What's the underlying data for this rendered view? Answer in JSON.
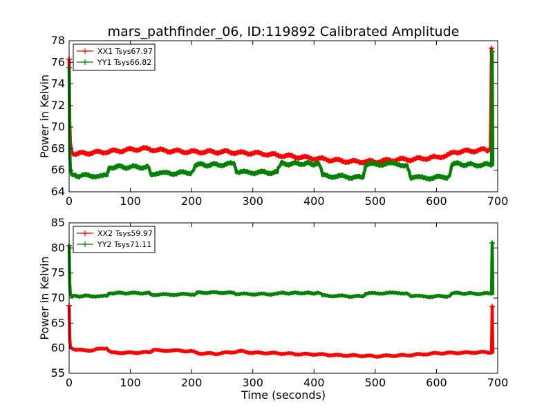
{
  "figure": {
    "title": "mars_pathfinder_06, ID:119892 Calibrated Amplitude",
    "xlabel": "Time (seconds)"
  },
  "colors": {
    "red": "#ff0000",
    "green": "#008000"
  },
  "chart_data": [
    {
      "type": "line",
      "title": "mars_pathfinder_06, ID:119892 Calibrated Amplitude",
      "ylabel": "Power in Kelvin",
      "xlabel": "",
      "xlim": [
        0,
        700
      ],
      "ylim": [
        64,
        78
      ],
      "xticks": [
        "0",
        "100",
        "200",
        "300",
        "400",
        "500",
        "600",
        "700"
      ],
      "yticks": [
        "64",
        "66",
        "68",
        "70",
        "72",
        "74",
        "76",
        "78"
      ],
      "legend": "top-left",
      "series": [
        {
          "name": "XX1 Tsys67.97",
          "color": "#ff0000",
          "x": [
            0,
            1,
            2,
            4,
            6,
            10,
            30,
            60,
            80,
            100,
            120,
            140,
            160,
            200,
            240,
            260,
            280,
            300,
            320,
            340,
            360,
            380,
            400,
            420,
            440,
            460,
            480,
            500,
            520,
            540,
            560,
            580,
            600,
            620,
            630,
            660,
            680,
            688,
            690,
            691,
            692,
            694
          ],
          "y": [
            76.3,
            70.5,
            68.6,
            67.8,
            67.6,
            67.5,
            67.6,
            67.7,
            67.8,
            67.9,
            68.0,
            67.9,
            67.8,
            67.7,
            67.7,
            67.7,
            67.6,
            67.6,
            67.5,
            67.4,
            67.3,
            67.2,
            67.1,
            67.0,
            66.9,
            66.8,
            66.8,
            66.8,
            66.9,
            67.0,
            67.0,
            67.1,
            67.2,
            67.4,
            67.7,
            67.8,
            67.9,
            67.9,
            77.3,
            68.0,
            67.9,
            67.9
          ]
        },
        {
          "name": "YY1 Tsys66.82",
          "color": "#008000",
          "x": [
            0,
            1,
            2,
            4,
            6,
            20,
            40,
            62,
            66,
            100,
            130,
            133,
            160,
            200,
            206,
            240,
            270,
            274,
            300,
            340,
            346,
            380,
            408,
            414,
            450,
            480,
            484,
            520,
            552,
            558,
            590,
            620,
            626,
            660,
            690,
            691,
            692,
            694
          ],
          "y": [
            75.5,
            68.0,
            66.2,
            65.6,
            65.5,
            65.5,
            65.5,
            65.5,
            66.3,
            66.3,
            66.3,
            65.7,
            65.7,
            65.8,
            66.5,
            66.5,
            66.6,
            65.8,
            65.8,
            65.8,
            66.6,
            66.6,
            66.6,
            65.5,
            65.4,
            65.3,
            66.5,
            66.6,
            66.5,
            65.3,
            65.3,
            65.4,
            66.6,
            66.5,
            66.5,
            77.0,
            66.5,
            66.5
          ]
        }
      ]
    },
    {
      "type": "line",
      "ylabel": "Power in Kelvin",
      "xlabel": "Time (seconds)",
      "xlim": [
        0,
        700
      ],
      "ylim": [
        55,
        85
      ],
      "xticks": [
        "0",
        "100",
        "200",
        "300",
        "400",
        "500",
        "600",
        "700"
      ],
      "yticks": [
        "55",
        "60",
        "65",
        "70",
        "75",
        "80",
        "85"
      ],
      "legend": "top-left",
      "series": [
        {
          "name": "XX2 Tsys59.97",
          "color": "#ff0000",
          "x": [
            0,
            1,
            2,
            4,
            6,
            20,
            40,
            55,
            62,
            70,
            100,
            130,
            138,
            180,
            200,
            210,
            240,
            280,
            300,
            340,
            380,
            400,
            420,
            440,
            480,
            500,
            520,
            550,
            580,
            600,
            640,
            680,
            690,
            691,
            692,
            694
          ],
          "y": [
            68.5,
            62.0,
            60.3,
            60.0,
            59.9,
            59.6,
            59.6,
            60.0,
            59.9,
            59.1,
            59.1,
            59.2,
            59.6,
            59.5,
            59.4,
            59.0,
            58.9,
            59.4,
            59.1,
            59.0,
            58.8,
            58.8,
            58.7,
            58.6,
            58.5,
            58.4,
            58.5,
            58.6,
            58.8,
            59.0,
            59.1,
            59.2,
            59.2,
            68.3,
            59.2,
            59.2
          ]
        },
        {
          "name": "YY2 Tsys71.11",
          "color": "#008000",
          "x": [
            0,
            1,
            2,
            4,
            6,
            40,
            62,
            66,
            100,
            130,
            134,
            170,
            206,
            210,
            250,
            270,
            274,
            300,
            340,
            346,
            380,
            408,
            414,
            450,
            480,
            484,
            520,
            552,
            558,
            590,
            620,
            626,
            660,
            690,
            691,
            692,
            694
          ],
          "y": [
            80.5,
            73.0,
            70.6,
            70.4,
            70.4,
            70.4,
            70.4,
            71.0,
            71.0,
            71.0,
            70.7,
            70.7,
            70.8,
            71.1,
            71.1,
            71.0,
            70.8,
            70.8,
            70.8,
            71.0,
            71.0,
            71.0,
            70.5,
            70.4,
            70.3,
            70.9,
            71.0,
            71.0,
            70.4,
            70.3,
            70.4,
            71.0,
            70.9,
            70.9,
            81.0,
            70.9,
            70.9
          ]
        }
      ]
    }
  ]
}
